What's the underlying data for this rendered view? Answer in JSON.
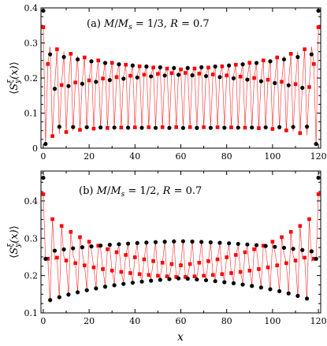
{
  "chart_data": [
    {
      "type": "scatter",
      "title": "(a) M/M_s = 1/3, R = 0.7",
      "title_parts": {
        "tag": "(a)",
        "ratio_num": "M",
        "ratio_den": "M",
        "ratio_sub": "s",
        "ratio_value": "= 1/3,",
        "param": "R",
        "param_value": "= 0.7"
      },
      "ylabel": "⟨S_y^ξ(x)⟩",
      "ylabel_parts": {
        "open": "⟨",
        "base": "S",
        "sub": "y",
        "sup": "ξ",
        "arg": "(x)",
        "close": "⟩"
      },
      "xlabel": "",
      "xlim": [
        -1,
        121
      ],
      "ylim": [
        0,
        0.4
      ],
      "xticks": [
        "0",
        "20",
        "40",
        "60",
        "80",
        "100",
        "120"
      ],
      "yticks": [
        "0",
        "0.1",
        "0.2",
        "0.3",
        "0.4"
      ],
      "period": 3,
      "edge": {
        "black": [
          0.392,
          0.012,
          0.255
        ],
        "red": [
          0.345,
          0.01,
          0.24
        ]
      },
      "branches": [
        {
          "phase": 0,
          "black": {
            "edge": 0.272,
            "center": 0.218,
            "width": 35
          },
          "red": {
            "edge": 0.298,
            "center": 0.215,
            "width": 28
          }
        },
        {
          "phase": 1,
          "black": {
            "edge": 0.062,
            "center": 0.057,
            "width": 30
          },
          "red": {
            "edge": 0.022,
            "center": 0.06,
            "width": 10
          }
        },
        {
          "phase": 2,
          "black": {
            "edge": 0.162,
            "center": 0.222,
            "width": 38
          },
          "red": {
            "edge": 0.168,
            "center": 0.225,
            "width": 34
          }
        }
      ],
      "series": [
        {
          "name": "",
          "color": "#000000",
          "marker": "circle"
        },
        {
          "name": "",
          "color": "#ff0000",
          "marker": "square",
          "line": true
        }
      ]
    },
    {
      "type": "scatter",
      "title": "(b) M/M_s = 1/2, R = 0.7",
      "title_parts": {
        "tag": "(b)",
        "ratio_num": "M",
        "ratio_den": "M",
        "ratio_sub": "s",
        "ratio_value": "= 1/2,",
        "param": "R",
        "param_value": "= 0.7"
      },
      "ylabel": "⟨S_y^ξ(x)⟩",
      "ylabel_parts": {
        "open": "⟨",
        "base": "S",
        "sub": "y",
        "sup": "ξ",
        "arg": "(x)",
        "close": "⟩"
      },
      "xlabel": "x",
      "xlim": [
        -1,
        121
      ],
      "ylim": [
        0.1,
        0.48
      ],
      "xticks": [
        "0",
        "20",
        "40",
        "60",
        "80",
        "100",
        "120"
      ],
      "yticks": [
        "0.1",
        "0.2",
        "0.3",
        "0.4"
      ],
      "period": 4,
      "edge": {
        "black": [
          0.462,
          0.245,
          0.25
        ],
        "red": [
          0.418,
          0.24,
          0.245
        ]
      },
      "branches": [
        {
          "phase": 0,
          "black": {
            "edge": 0.342,
            "center": 0.205,
            "width": 35
          },
          "red": {
            "edge": 0.372,
            "center": 0.205,
            "width": 30
          }
        },
        {
          "phase": 1,
          "black": {
            "edge": 0.262,
            "center": 0.3,
            "width": 38
          },
          "red": {
            "edge": 0.232,
            "center": 0.305,
            "width": 32
          }
        },
        {
          "phase": 2,
          "black": {
            "edge": 0.228,
            "center": 0.188,
            "width": 35
          },
          "red": {
            "edge": 0.262,
            "center": 0.185,
            "width": 30
          }
        },
        {
          "phase": 3,
          "black": {
            "edge": 0.128,
            "center": 0.208,
            "width": 36
          },
          "red": {
            "edge": 0.118,
            "center": 0.212,
            "width": 30
          }
        }
      ],
      "series": [
        {
          "name": "",
          "color": "#000000",
          "marker": "circle"
        },
        {
          "name": "",
          "color": "#ff0000",
          "marker": "square",
          "line": true
        }
      ]
    }
  ]
}
